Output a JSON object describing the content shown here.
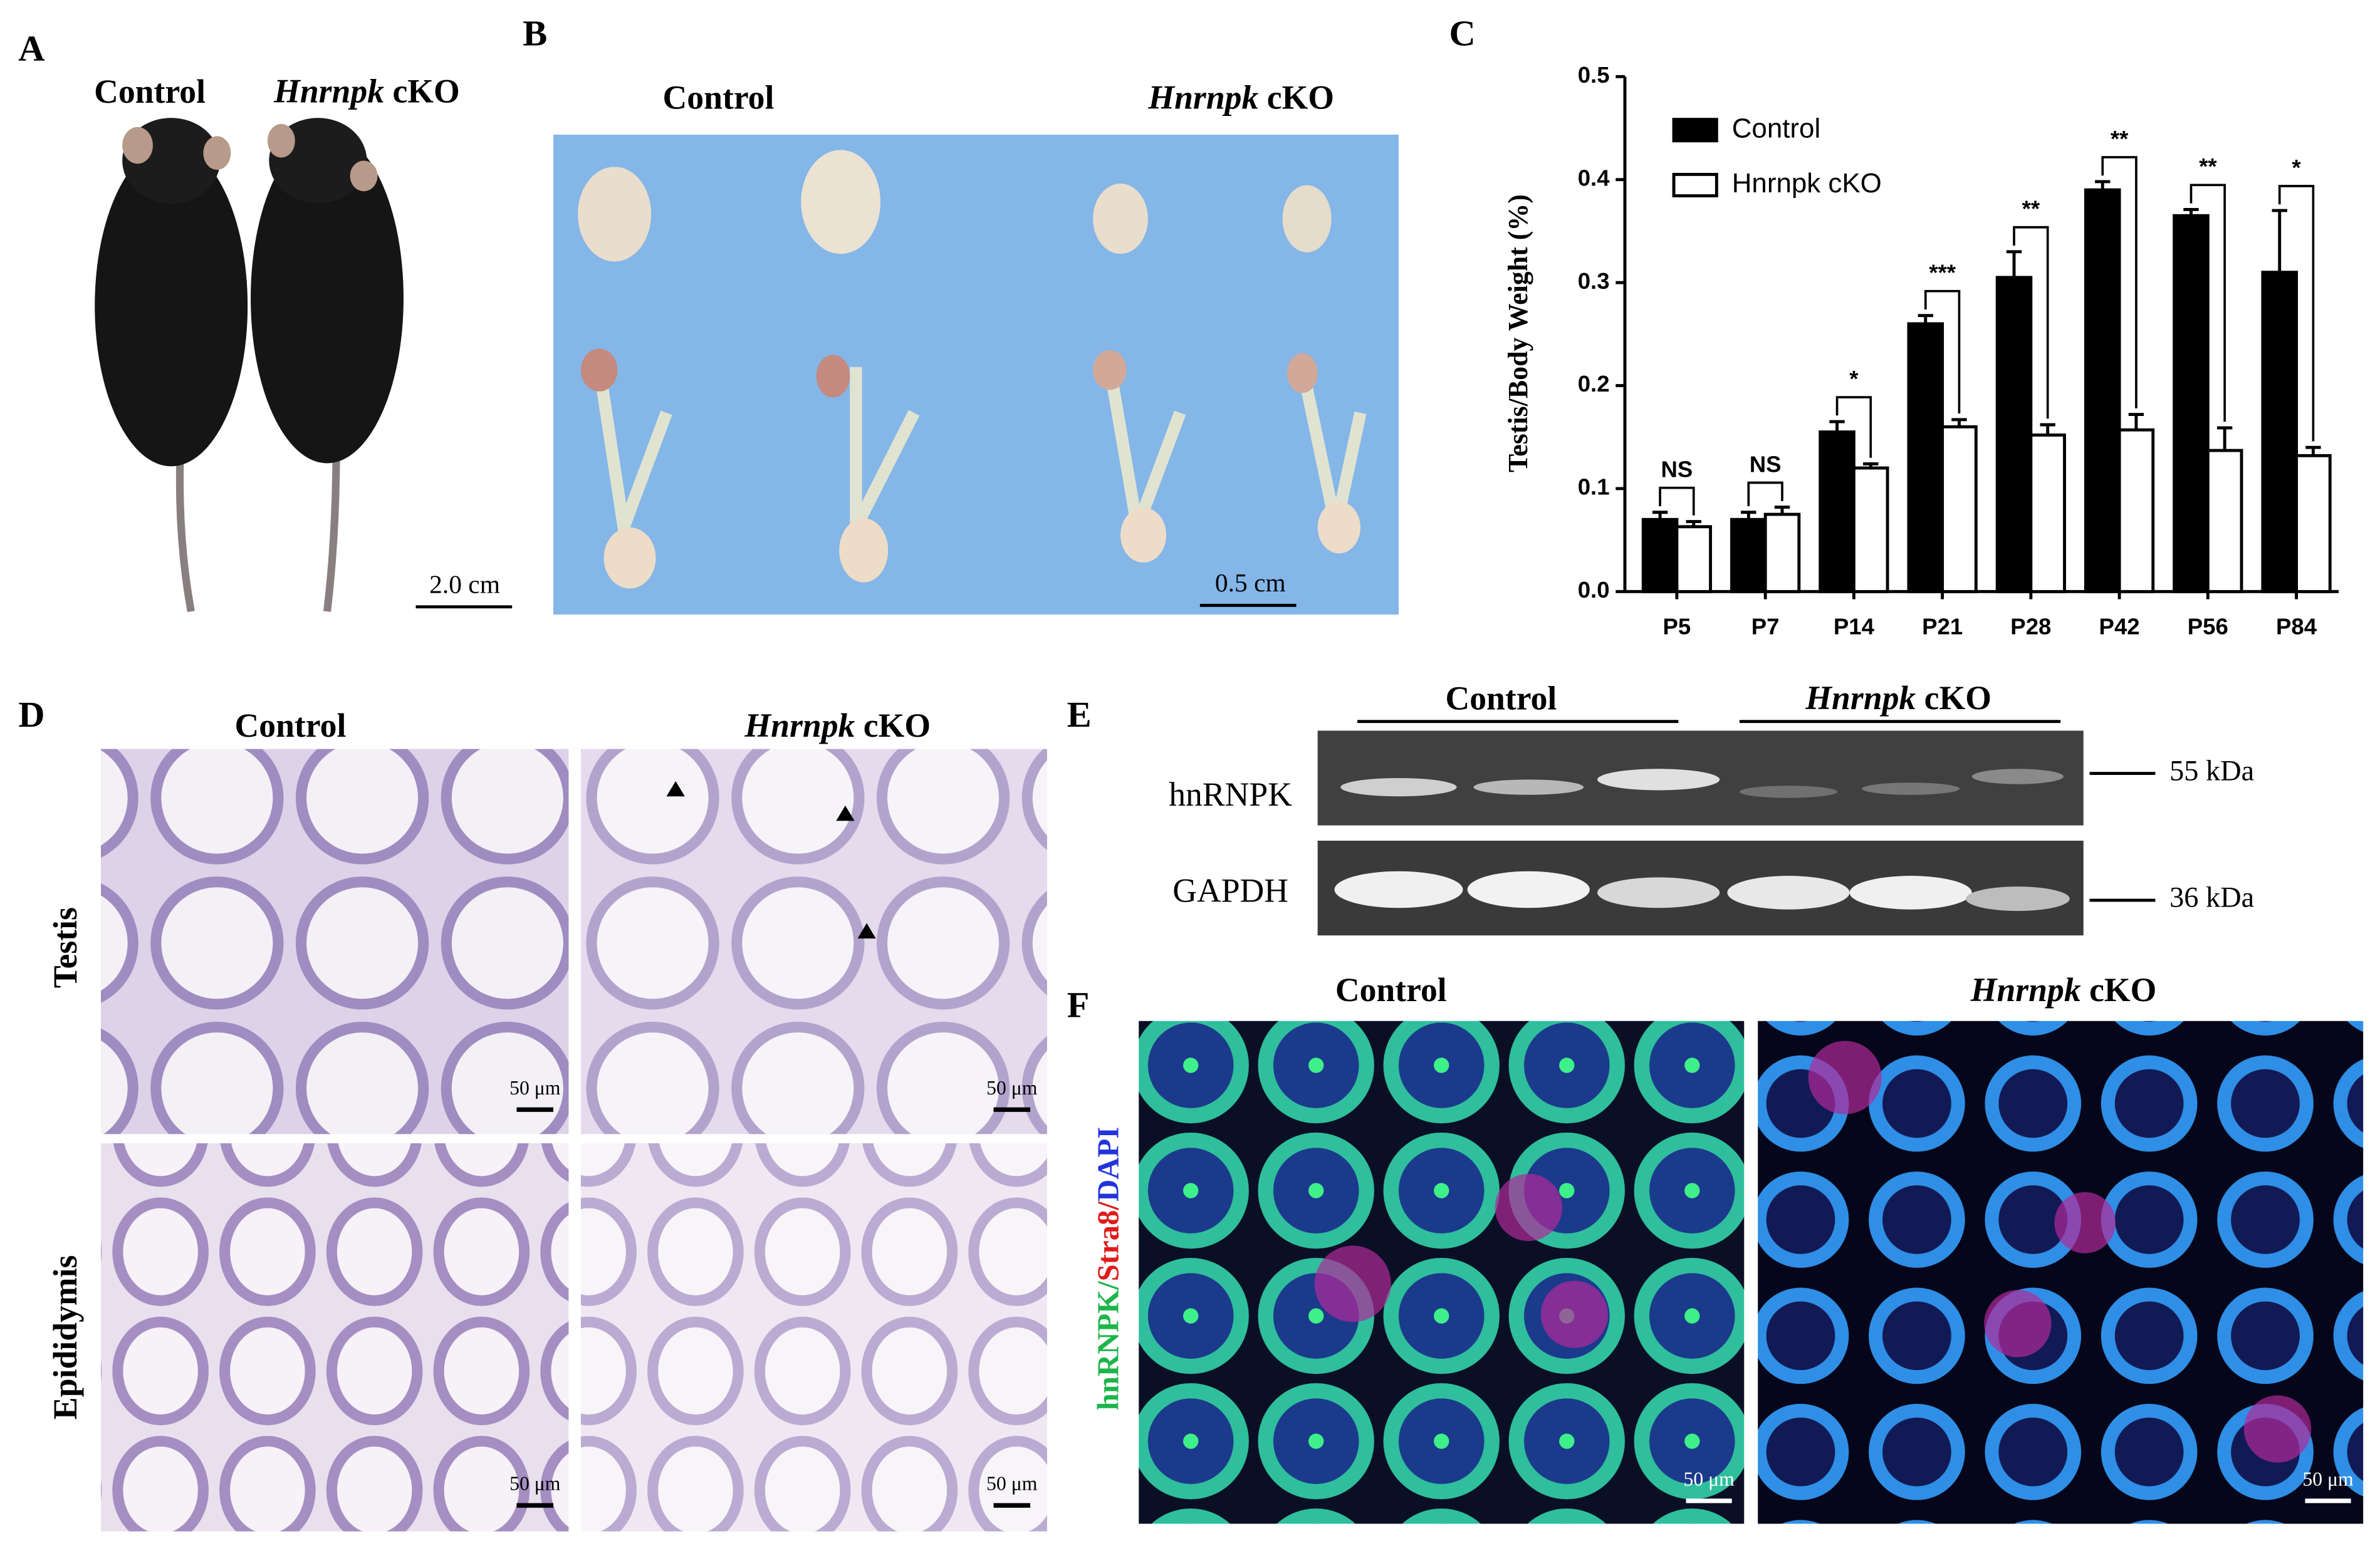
{
  "panels": {
    "A": {
      "label": "A",
      "control": "Control",
      "ko_gene": "Hnrnpk",
      "ko_suffix": "cKO",
      "scale_bar": "2.0 cm"
    },
    "B": {
      "label": "B",
      "control": "Control",
      "ko_gene": "Hnrnpk",
      "ko_suffix": "cKO",
      "scale_bar": "0.5 cm"
    },
    "C": {
      "label": "C"
    },
    "D": {
      "label": "D",
      "control": "Control",
      "ko_gene": "Hnrnpk",
      "ko_suffix": "cKO",
      "rows": [
        "Testis",
        "Epididymis"
      ],
      "scale_bars": [
        "50 μm",
        "50 μm",
        "50 μm",
        "50 μm"
      ]
    },
    "E": {
      "label": "E",
      "control": "Control",
      "ko_gene": "Hnrnpk",
      "ko_suffix": "cKO",
      "proteins": [
        "hnRNPK",
        "GAPDH"
      ],
      "markers": [
        "55 kDa",
        "36 kDa"
      ]
    },
    "F": {
      "label": "F",
      "control": "Control",
      "ko_gene": "Hnrnpk",
      "ko_suffix": "cKO",
      "stain_parts": [
        "hnRNPK/",
        "Stra8/",
        "DAPI"
      ],
      "scale_bars": [
        "50 μm",
        "50 μm"
      ]
    }
  },
  "chart_data": {
    "type": "bar",
    "y_label": "Testis/Body Weight (%)",
    "categories": [
      "P5",
      "P7",
      "P14",
      "P21",
      "P28",
      "P42",
      "P56",
      "P84"
    ],
    "series": [
      {
        "name": "Control",
        "color": "#000000",
        "values": [
          0.07,
          0.07,
          0.155,
          0.26,
          0.305,
          0.39,
          0.365,
          0.31
        ],
        "errors": [
          0.007,
          0.007,
          0.01,
          0.008,
          0.025,
          0.008,
          0.006,
          0.06
        ]
      },
      {
        "name": "Hnrnpk cKO",
        "color": "#ffffff",
        "values": [
          0.063,
          0.075,
          0.12,
          0.16,
          0.152,
          0.157,
          0.137,
          0.132
        ],
        "errors": [
          0.005,
          0.007,
          0.004,
          0.007,
          0.01,
          0.015,
          0.022,
          0.008
        ]
      }
    ],
    "significance": [
      "NS",
      "NS",
      "*",
      "***",
      "**",
      "**",
      "**",
      "*"
    ],
    "ylim": [
      0,
      0.5
    ],
    "yticks": [
      {
        "value": 0,
        "label": "0.0"
      },
      0.1,
      0.2,
      0.3,
      0.4,
      0.5
    ],
    "legend": "upper left"
  }
}
